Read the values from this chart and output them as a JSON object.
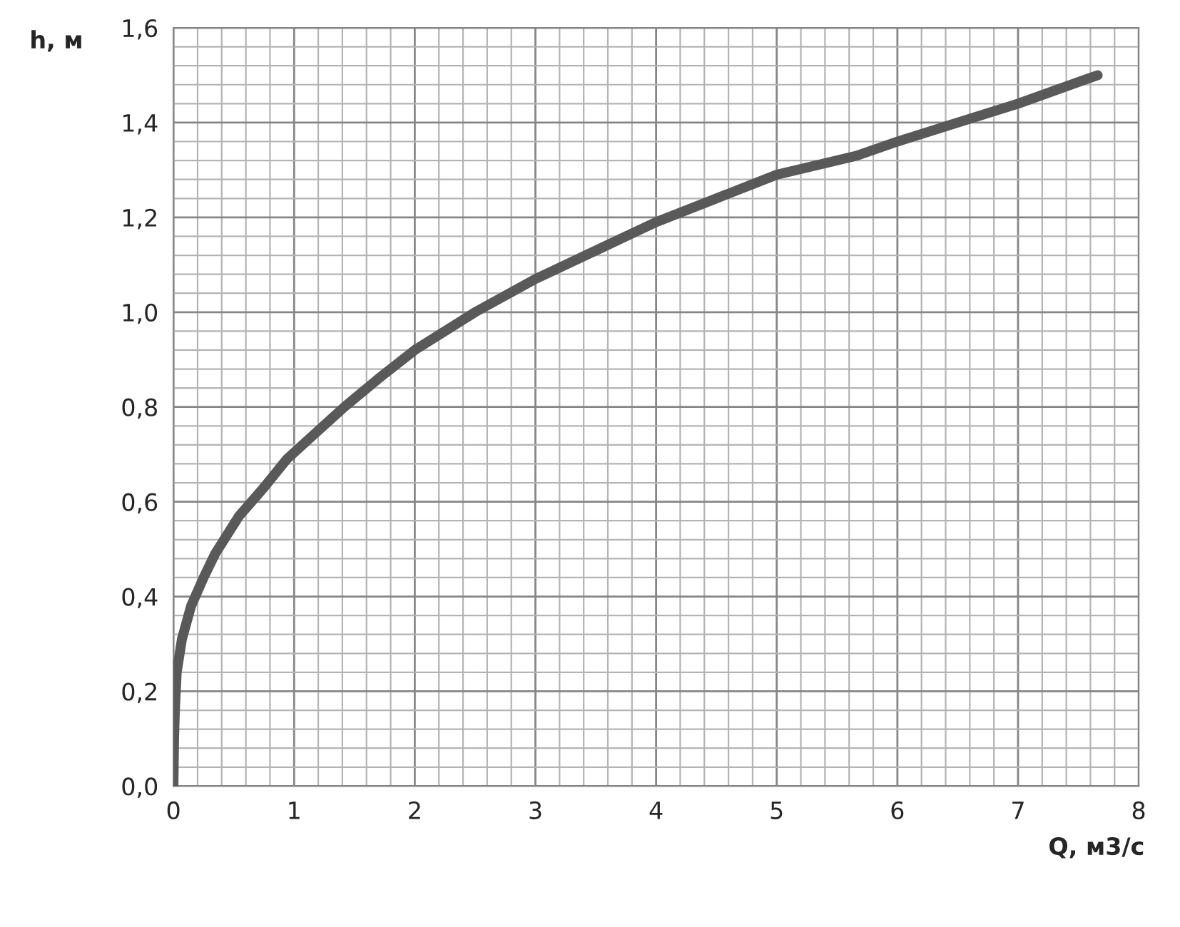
{
  "chart_data": {
    "type": "line",
    "xlabel": "Q, м3/с",
    "ylabel": "h, м",
    "series": [
      {
        "color": "#595959",
        "x": [
          0.0,
          0.005,
          0.012,
          0.027,
          0.07,
          0.146,
          0.25,
          0.345,
          0.544,
          0.75,
          0.94,
          1.2,
          1.417,
          1.7,
          2.0,
          2.5,
          3.0,
          3.5,
          4.0,
          4.5,
          5.0,
          5.66,
          6.0,
          6.5,
          7.0,
          7.66
        ],
        "values": [
          0.0,
          0.1,
          0.16,
          0.24,
          0.31,
          0.38,
          0.44,
          0.49,
          0.57,
          0.63,
          0.69,
          0.75,
          0.8,
          0.86,
          0.92,
          1.0,
          1.07,
          1.13,
          1.19,
          1.24,
          1.29,
          1.33,
          1.36,
          1.4,
          1.44,
          1.5
        ]
      }
    ],
    "xlim": [
      0,
      8
    ],
    "ylim": [
      0,
      1.6
    ],
    "xticks": [
      0,
      {
        "value": 0.2,
        "label": null
      },
      {
        "value": 0.4,
        "label": null
      },
      {
        "value": 0.6,
        "label": null
      },
      {
        "value": 0.8,
        "label": null
      },
      1,
      {
        "value": 1.2,
        "label": null
      },
      {
        "value": 1.4,
        "label": null
      },
      {
        "value": 1.6,
        "label": null
      },
      {
        "value": 1.8,
        "label": null
      },
      2,
      {
        "value": 2.2,
        "label": null
      },
      {
        "value": 2.4,
        "label": null
      },
      {
        "value": 2.6,
        "label": null
      },
      {
        "value": 2.8,
        "label": null
      },
      3,
      {
        "value": 3.2,
        "label": null
      },
      {
        "value": 3.4,
        "label": null
      },
      {
        "value": 3.6,
        "label": null
      },
      {
        "value": 3.8,
        "label": null
      },
      4,
      {
        "value": 4.2,
        "label": null
      },
      {
        "value": 4.4,
        "label": null
      },
      {
        "value": 4.6,
        "label": null
      },
      {
        "value": 4.8,
        "label": null
      },
      5,
      {
        "value": 5.2,
        "label": null
      },
      {
        "value": 5.4,
        "label": null
      },
      {
        "value": 5.6,
        "label": null
      },
      {
        "value": 5.8,
        "label": null
      },
      6,
      {
        "value": 6.2,
        "label": null
      },
      {
        "value": 6.4,
        "label": null
      },
      {
        "value": 6.6,
        "label": null
      },
      {
        "value": 6.8,
        "label": null
      },
      7,
      {
        "value": 7.2,
        "label": null
      },
      {
        "value": 7.4,
        "label": null
      },
      {
        "value": 7.6,
        "label": null
      },
      {
        "value": 7.8,
        "label": null
      },
      8
    ],
    "yticks": [
      {
        "value": 0,
        "label": "0,0"
      },
      {
        "value": 0.04,
        "label": null
      },
      {
        "value": 0.08,
        "label": null
      },
      {
        "value": 0.12,
        "label": null
      },
      {
        "value": 0.16,
        "label": null
      },
      {
        "value": 0.2,
        "label": "0,2"
      },
      {
        "value": 0.24,
        "label": null
      },
      {
        "value": 0.28,
        "label": null
      },
      {
        "value": 0.32,
        "label": null
      },
      {
        "value": 0.36,
        "label": null
      },
      {
        "value": 0.4,
        "label": "0,4"
      },
      {
        "value": 0.44,
        "label": null
      },
      {
        "value": 0.48,
        "label": null
      },
      {
        "value": 0.52,
        "label": null
      },
      {
        "value": 0.56,
        "label": null
      },
      {
        "value": 0.6,
        "label": "0,6"
      },
      {
        "value": 0.64,
        "label": null
      },
      {
        "value": 0.68,
        "label": null
      },
      {
        "value": 0.72,
        "label": null
      },
      {
        "value": 0.76,
        "label": null
      },
      {
        "value": 0.8,
        "label": "0,8"
      },
      {
        "value": 0.84,
        "label": null
      },
      {
        "value": 0.88,
        "label": null
      },
      {
        "value": 0.92,
        "label": null
      },
      {
        "value": 0.96,
        "label": null
      },
      {
        "value": 1.0,
        "label": "1,0"
      },
      {
        "value": 1.04,
        "label": null
      },
      {
        "value": 1.08,
        "label": null
      },
      {
        "value": 1.12,
        "label": null
      },
      {
        "value": 1.16,
        "label": null
      },
      {
        "value": 1.2,
        "label": "1,2"
      },
      {
        "value": 1.24,
        "label": null
      },
      {
        "value": 1.28,
        "label": null
      },
      {
        "value": 1.32,
        "label": null
      },
      {
        "value": 1.36,
        "label": null
      },
      {
        "value": 1.4,
        "label": "1,4"
      },
      {
        "value": 1.44,
        "label": null
      },
      {
        "value": 1.48,
        "label": null
      },
      {
        "value": 1.52,
        "label": null
      },
      {
        "value": 1.56,
        "label": null
      },
      {
        "value": 1.6,
        "label": "1,6"
      }
    ],
    "grid": true,
    "marker": "none",
    "line_style": "solid"
  }
}
